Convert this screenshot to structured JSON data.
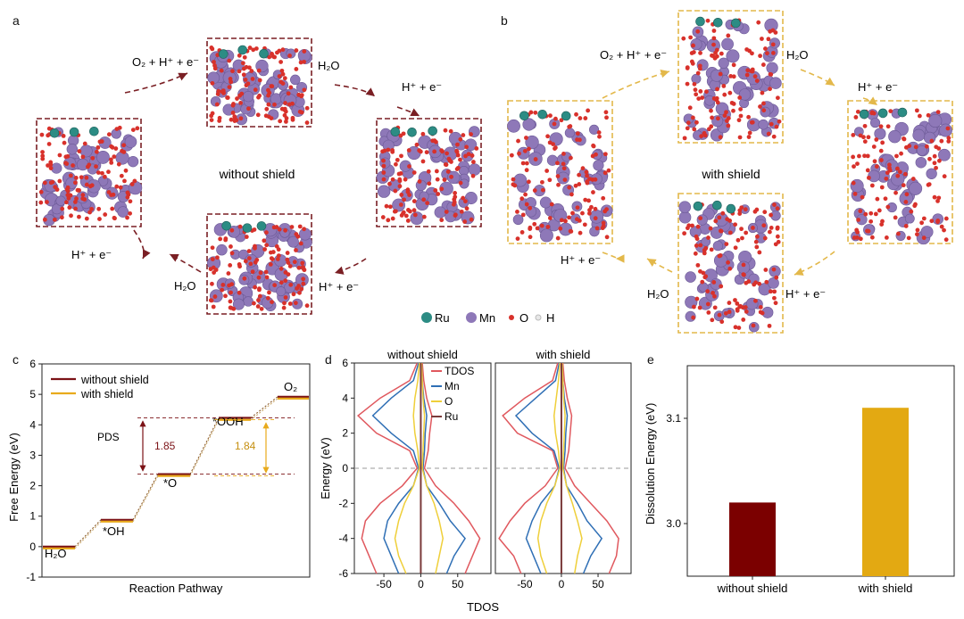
{
  "panels": {
    "a": {
      "label": "a",
      "center_label": "without shield",
      "steps": [
        "O₂ + H⁺ + e⁻",
        "H₂O",
        "H⁺ + e⁻",
        "H⁺ + e⁻",
        "H₂O",
        "H⁺ + e⁻"
      ],
      "color": "#7a1f24"
    },
    "b": {
      "label": "b",
      "center_label": "with shield",
      "steps": [
        "O₂ + H⁺ + e⁻",
        "H₂O",
        "H⁺ + e⁻",
        "H⁺ + e⁻",
        "H₂O",
        "H⁺ + e⁻"
      ],
      "color": "#e3b84a"
    },
    "atom_legend": [
      "Ru",
      "Mn",
      "O",
      "H"
    ],
    "atom_colors": {
      "Ru": "#2c8c84",
      "Mn": "#8e78b8",
      "O": "#d8312b",
      "H": "#e8e8e8"
    }
  },
  "chart_data": [
    {
      "panel": "c",
      "type": "line",
      "ylabel": "Free Energy (eV)",
      "xlabel": "Reaction Pathway",
      "ylim": [
        -1,
        6
      ],
      "yticks": [
        "-1",
        "0",
        "1",
        "2",
        "3",
        "4",
        "5",
        "6"
      ],
      "intermediates": [
        "H₂O",
        "*OH",
        "*O",
        "*OOH",
        "O₂"
      ],
      "series": [
        {
          "name": "without shield",
          "color": "#7b1216",
          "values": [
            0,
            0.88,
            2.38,
            4.23,
            4.92
          ]
        },
        {
          "name": "with shield",
          "color": "#e8aa1c",
          "values": [
            0,
            0.88,
            2.38,
            4.22,
            4.92
          ]
        }
      ],
      "annotations": {
        "pds_label": "PDS",
        "gap_without": "1.85",
        "gap_with": "1.84"
      }
    },
    {
      "panel": "d",
      "type": "line",
      "xlabel": "TDOS",
      "ylabel": "Energy (eV)",
      "ylim": [
        -6,
        6
      ],
      "xlim": [
        -90,
        95
      ],
      "yticks": [
        "-6",
        "-4",
        "-2",
        "0",
        "2",
        "4",
        "6"
      ],
      "xticks": [
        "-50",
        "0",
        "50"
      ],
      "subplot_titles": [
        "without shield",
        "with shield"
      ],
      "legend": [
        "TDOS",
        "Mn",
        "O",
        "Ru"
      ],
      "series_colors": {
        "TDOS": "#e0585e",
        "Mn": "#2f6fb5",
        "O": "#efcf3a",
        "Ru": "#7a3a3a"
      },
      "energy": [
        -6,
        -5,
        -4,
        -3,
        -2,
        -1,
        0,
        1,
        2,
        3,
        4,
        5,
        6
      ],
      "subplots": [
        {
          "TDOS_pos": [
            60,
            70,
            80,
            65,
            45,
            20,
            5,
            10,
            12,
            15,
            8,
            4,
            2
          ],
          "TDOS_neg": [
            -60,
            -70,
            -80,
            -75,
            -55,
            -25,
            -5,
            -15,
            -60,
            -85,
            -55,
            -15,
            -5
          ],
          "Mn_pos": [
            35,
            45,
            60,
            40,
            25,
            8,
            3,
            5,
            6,
            8,
            4,
            2,
            1
          ],
          "Mn_neg": [
            -30,
            -40,
            -50,
            -45,
            -30,
            -10,
            -3,
            -10,
            -40,
            -65,
            -40,
            -10,
            -3
          ],
          "O_pos": [
            20,
            25,
            30,
            25,
            18,
            8,
            2,
            3,
            4,
            5,
            3,
            2,
            1
          ],
          "O_neg": [
            -20,
            -30,
            -35,
            -30,
            -22,
            -10,
            -2,
            -4,
            -8,
            -10,
            -8,
            -4,
            -2
          ]
        },
        {
          "TDOS_pos": [
            65,
            75,
            78,
            62,
            40,
            18,
            5,
            10,
            12,
            14,
            8,
            4,
            2
          ],
          "TDOS_neg": [
            -55,
            -65,
            -85,
            -70,
            -50,
            -22,
            -5,
            -12,
            -60,
            -80,
            -50,
            -12,
            -5
          ],
          "Mn_pos": [
            30,
            40,
            55,
            35,
            22,
            7,
            3,
            5,
            6,
            8,
            4,
            2,
            1
          ],
          "Mn_neg": [
            -28,
            -38,
            -48,
            -40,
            -28,
            -9,
            -3,
            -10,
            -40,
            -62,
            -35,
            -8,
            -3
          ],
          "O_pos": [
            18,
            22,
            28,
            22,
            15,
            7,
            2,
            3,
            4,
            5,
            3,
            2,
            1
          ],
          "O_neg": [
            -20,
            -28,
            -32,
            -28,
            -20,
            -9,
            -2,
            -4,
            -8,
            -10,
            -7,
            -4,
            -2
          ]
        }
      ]
    },
    {
      "panel": "e",
      "type": "bar",
      "ylabel": "Dissolution Energy (eV)",
      "ylim": [
        2.95,
        3.15
      ],
      "yticks": [
        "3.0",
        "3.1"
      ],
      "categories": [
        "without shield",
        "with shield"
      ],
      "values": [
        3.02,
        3.11
      ],
      "colors": [
        "#7b0000",
        "#e3a912"
      ]
    }
  ]
}
